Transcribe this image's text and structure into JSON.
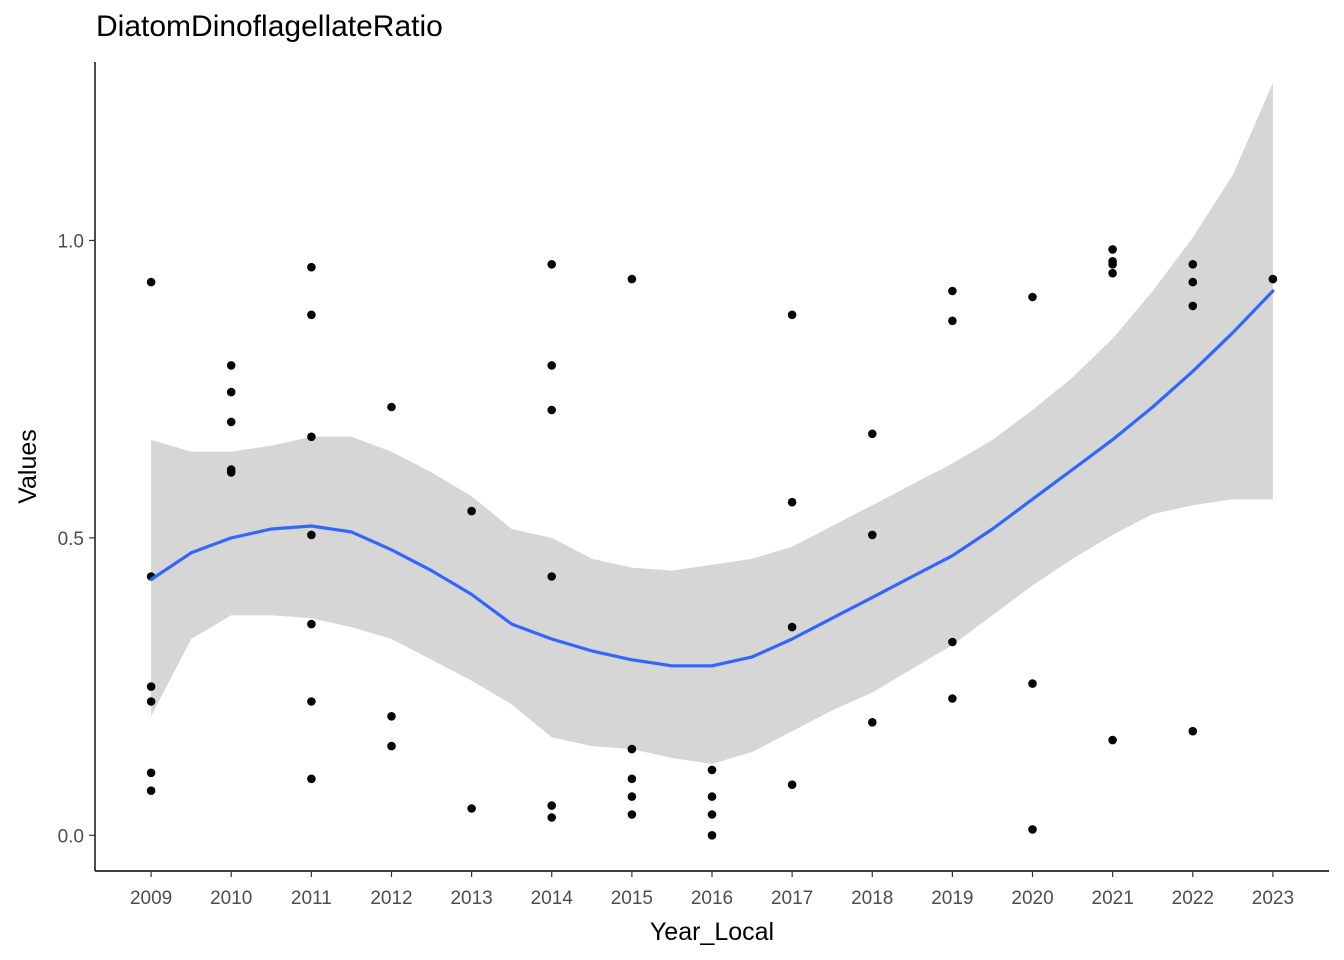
{
  "chart_data": {
    "type": "scatter",
    "title": "DiatomDinoflagellateRatio",
    "xlabel": "Year_Local",
    "ylabel": "Values",
    "x_categories": [
      "2009",
      "2010",
      "2011",
      "2012",
      "2013",
      "2014",
      "2015",
      "2016",
      "2017",
      "2018",
      "2019",
      "2020",
      "2021",
      "2022",
      "2023"
    ],
    "xlim": [
      2008.3,
      2023.7
    ],
    "ylim": [
      -0.06,
      1.3
    ],
    "y_ticks": [
      0.0,
      0.5,
      1.0
    ],
    "y_tick_labels": [
      "0.0",
      "0.5",
      "1.0"
    ],
    "grid": false,
    "point_color": "#000000",
    "smooth_color": "#3366ff",
    "ribbon_color": "#d6d6d6",
    "points": [
      {
        "x": 2009,
        "y": 0.93
      },
      {
        "x": 2009,
        "y": 0.435
      },
      {
        "x": 2009,
        "y": 0.25
      },
      {
        "x": 2009,
        "y": 0.225
      },
      {
        "x": 2009,
        "y": 0.105
      },
      {
        "x": 2009,
        "y": 0.075
      },
      {
        "x": 2010,
        "y": 0.79
      },
      {
        "x": 2010,
        "y": 0.745
      },
      {
        "x": 2010,
        "y": 0.695
      },
      {
        "x": 2010,
        "y": 0.615
      },
      {
        "x": 2010,
        "y": 0.61
      },
      {
        "x": 2011,
        "y": 0.955
      },
      {
        "x": 2011,
        "y": 0.875
      },
      {
        "x": 2011,
        "y": 0.67
      },
      {
        "x": 2011,
        "y": 0.505
      },
      {
        "x": 2011,
        "y": 0.355
      },
      {
        "x": 2011,
        "y": 0.225
      },
      {
        "x": 2011,
        "y": 0.095
      },
      {
        "x": 2012,
        "y": 0.72
      },
      {
        "x": 2012,
        "y": 0.2
      },
      {
        "x": 2012,
        "y": 0.15
      },
      {
        "x": 2013,
        "y": 0.545
      },
      {
        "x": 2013,
        "y": 0.045
      },
      {
        "x": 2014,
        "y": 0.96
      },
      {
        "x": 2014,
        "y": 0.79
      },
      {
        "x": 2014,
        "y": 0.715
      },
      {
        "x": 2014,
        "y": 0.435
      },
      {
        "x": 2014,
        "y": 0.05
      },
      {
        "x": 2014,
        "y": 0.03
      },
      {
        "x": 2015,
        "y": 0.935
      },
      {
        "x": 2015,
        "y": 0.145
      },
      {
        "x": 2015,
        "y": 0.095
      },
      {
        "x": 2015,
        "y": 0.065
      },
      {
        "x": 2015,
        "y": 0.035
      },
      {
        "x": 2016,
        "y": 0.11
      },
      {
        "x": 2016,
        "y": 0.065
      },
      {
        "x": 2016,
        "y": 0.035
      },
      {
        "x": 2016,
        "y": 0.0
      },
      {
        "x": 2017,
        "y": 0.875
      },
      {
        "x": 2017,
        "y": 0.56
      },
      {
        "x": 2017,
        "y": 0.35
      },
      {
        "x": 2017,
        "y": 0.085
      },
      {
        "x": 2018,
        "y": 0.675
      },
      {
        "x": 2018,
        "y": 0.505
      },
      {
        "x": 2018,
        "y": 0.19
      },
      {
        "x": 2019,
        "y": 0.915
      },
      {
        "x": 2019,
        "y": 0.865
      },
      {
        "x": 2019,
        "y": 0.325
      },
      {
        "x": 2019,
        "y": 0.23
      },
      {
        "x": 2020,
        "y": 0.905
      },
      {
        "x": 2020,
        "y": 0.255
      },
      {
        "x": 2020,
        "y": 0.01
      },
      {
        "x": 2021,
        "y": 0.985
      },
      {
        "x": 2021,
        "y": 0.965
      },
      {
        "x": 2021,
        "y": 0.96
      },
      {
        "x": 2021,
        "y": 0.945
      },
      {
        "x": 2021,
        "y": 0.16
      },
      {
        "x": 2022,
        "y": 0.96
      },
      {
        "x": 2022,
        "y": 0.93
      },
      {
        "x": 2022,
        "y": 0.89
      },
      {
        "x": 2022,
        "y": 0.175
      },
      {
        "x": 2023,
        "y": 0.935
      }
    ],
    "smooth": {
      "x": [
        2009,
        2009.5,
        2010,
        2010.5,
        2011,
        2011.5,
        2012,
        2012.5,
        2013,
        2013.5,
        2014,
        2014.5,
        2015,
        2015.5,
        2016,
        2016.5,
        2017,
        2017.5,
        2018,
        2018.5,
        2019,
        2019.5,
        2020,
        2020.5,
        2021,
        2021.5,
        2022,
        2022.5,
        2023
      ],
      "y": [
        0.43,
        0.475,
        0.5,
        0.515,
        0.52,
        0.51,
        0.48,
        0.445,
        0.405,
        0.355,
        0.33,
        0.31,
        0.295,
        0.285,
        0.285,
        0.3,
        0.33,
        0.365,
        0.4,
        0.435,
        0.47,
        0.515,
        0.565,
        0.615,
        0.665,
        0.72,
        0.78,
        0.845,
        0.915
      ],
      "lower": [
        0.2,
        0.33,
        0.37,
        0.37,
        0.365,
        0.35,
        0.33,
        0.295,
        0.26,
        0.22,
        0.165,
        0.15,
        0.145,
        0.13,
        0.12,
        0.14,
        0.175,
        0.21,
        0.24,
        0.28,
        0.32,
        0.37,
        0.42,
        0.465,
        0.505,
        0.54,
        0.555,
        0.565,
        0.565
      ],
      "upper": [
        0.665,
        0.645,
        0.645,
        0.655,
        0.67,
        0.67,
        0.645,
        0.61,
        0.57,
        0.515,
        0.5,
        0.465,
        0.45,
        0.445,
        0.455,
        0.465,
        0.485,
        0.52,
        0.555,
        0.59,
        0.625,
        0.665,
        0.715,
        0.77,
        0.835,
        0.915,
        1.005,
        1.11,
        1.265
      ]
    }
  }
}
